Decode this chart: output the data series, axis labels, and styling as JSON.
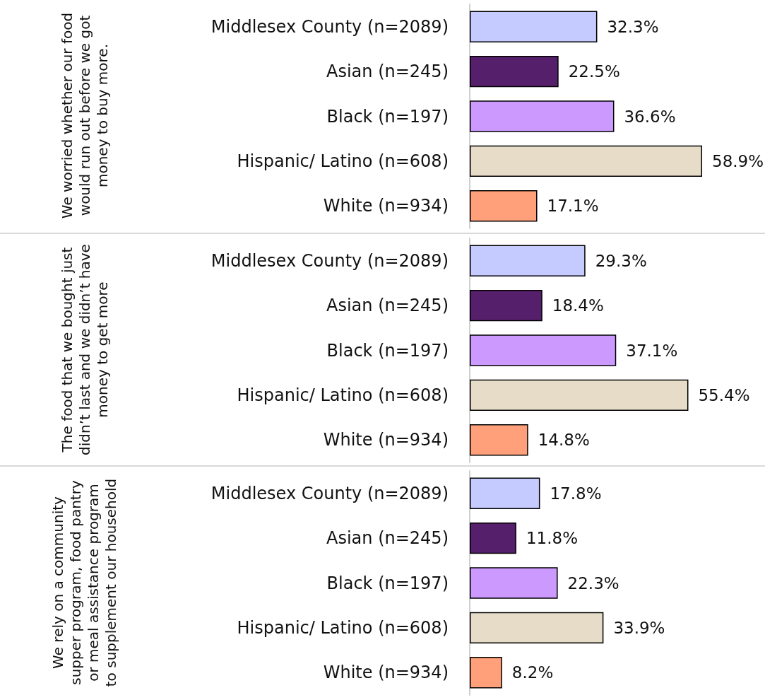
{
  "chart_data": [
    {
      "type": "bar",
      "orientation": "horizontal",
      "ylabel": "We worried whether our food would run out before we got money to buy more.",
      "categories": [
        "Middlesex County (n=2089)",
        "Asian (n=245)",
        "Black (n=197)",
        "Hispanic/ Latino (n=608)",
        "White (n=934)"
      ],
      "values": [
        32.3,
        22.5,
        36.6,
        58.9,
        17.1
      ],
      "value_labels": [
        "32.3%",
        "22.5%",
        "36.6%",
        "58.9%",
        "17.1%"
      ],
      "colors": [
        "#c5caff",
        "#561f6b",
        "#cc99ff",
        "#e6dcc8",
        "#ffa07a"
      ]
    },
    {
      "type": "bar",
      "orientation": "horizontal",
      "ylabel": "The food that we bought just didn’t last and we didn’t have money to get more",
      "categories": [
        "Middlesex County (n=2089)",
        "Asian (n=245)",
        "Black (n=197)",
        "Hispanic/ Latino (n=608)",
        "White (n=934)"
      ],
      "values": [
        29.3,
        18.4,
        37.1,
        55.4,
        14.8
      ],
      "value_labels": [
        "29.3%",
        "18.4%",
        "37.1%",
        "55.4%",
        "14.8%"
      ],
      "colors": [
        "#c5caff",
        "#561f6b",
        "#cc99ff",
        "#e6dcc8",
        "#ffa07a"
      ]
    },
    {
      "type": "bar",
      "orientation": "horizontal",
      "ylabel": "We rely on a community supper program, food pantry or meal assistance program to supplement our household",
      "categories": [
        "Middlesex County (n=2089)",
        "Asian (n=245)",
        "Black (n=197)",
        "Hispanic/ Latino (n=608)",
        "White (n=934)"
      ],
      "values": [
        17.8,
        11.8,
        22.3,
        33.9,
        8.2
      ],
      "value_labels": [
        "17.8%",
        "11.8%",
        "22.3%",
        "33.9%",
        "8.2%"
      ],
      "colors": [
        "#c5caff",
        "#561f6b",
        "#cc99ff",
        "#e6dcc8",
        "#ffa07a"
      ]
    }
  ]
}
